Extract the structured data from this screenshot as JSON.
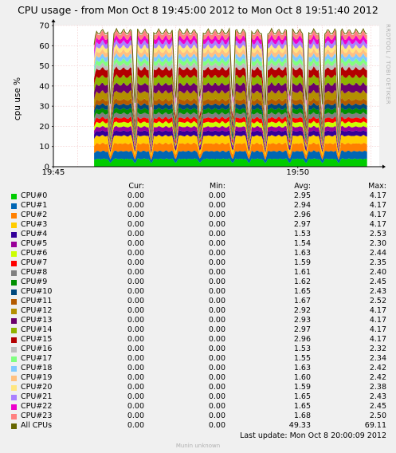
{
  "title": "CPU usage - from Mon Oct  8 19:45:00 2012 to Mon Oct  8 19:51:40 2012",
  "side_credit": "RRDTOOL / TOBI OETIKER",
  "footer": "Munin unknown",
  "last_update": "Last update:  Mon Oct  8 20:00:09 2012",
  "legend_headers": {
    "cur": "Cur:",
    "min": "Min:",
    "avg": "Avg:",
    "max": "Max:"
  },
  "legend": [
    {
      "name": "CPU#0",
      "color": "#00cc00",
      "cur": "0.00",
      "min": "0.00",
      "avg": "2.95",
      "max": "4.17"
    },
    {
      "name": "CPU#1",
      "color": "#0066b3",
      "cur": "0.00",
      "min": "0.00",
      "avg": "2.94",
      "max": "4.17"
    },
    {
      "name": "CPU#2",
      "color": "#ff8000",
      "cur": "0.00",
      "min": "0.00",
      "avg": "2.96",
      "max": "4.17"
    },
    {
      "name": "CPU#3",
      "color": "#ffcc00",
      "cur": "0.00",
      "min": "0.00",
      "avg": "2.97",
      "max": "4.17"
    },
    {
      "name": "CPU#4",
      "color": "#330099",
      "cur": "0.00",
      "min": "0.00",
      "avg": "1.53",
      "max": "2.53"
    },
    {
      "name": "CPU#5",
      "color": "#990099",
      "cur": "0.00",
      "min": "0.00",
      "avg": "1.54",
      "max": "2.30"
    },
    {
      "name": "CPU#6",
      "color": "#ccff00",
      "cur": "0.00",
      "min": "0.00",
      "avg": "1.63",
      "max": "2.44"
    },
    {
      "name": "CPU#7",
      "color": "#ff0000",
      "cur": "0.00",
      "min": "0.00",
      "avg": "1.59",
      "max": "2.35"
    },
    {
      "name": "CPU#8",
      "color": "#808080",
      "cur": "0.00",
      "min": "0.00",
      "avg": "1.61",
      "max": "2.40"
    },
    {
      "name": "CPU#9",
      "color": "#008f00",
      "cur": "0.00",
      "min": "0.00",
      "avg": "1.62",
      "max": "2.45"
    },
    {
      "name": "CPU#10",
      "color": "#00487d",
      "cur": "0.00",
      "min": "0.00",
      "avg": "1.65",
      "max": "2.43"
    },
    {
      "name": "CPU#11",
      "color": "#b35a00",
      "cur": "0.00",
      "min": "0.00",
      "avg": "1.67",
      "max": "2.52"
    },
    {
      "name": "CPU#12",
      "color": "#b38f00",
      "cur": "0.00",
      "min": "0.00",
      "avg": "2.92",
      "max": "4.17"
    },
    {
      "name": "CPU#13",
      "color": "#6b006b",
      "cur": "0.00",
      "min": "0.00",
      "avg": "2.93",
      "max": "4.17"
    },
    {
      "name": "CPU#14",
      "color": "#8fb300",
      "cur": "0.00",
      "min": "0.00",
      "avg": "2.97",
      "max": "4.17"
    },
    {
      "name": "CPU#15",
      "color": "#b30000",
      "cur": "0.00",
      "min": "0.00",
      "avg": "2.96",
      "max": "4.17"
    },
    {
      "name": "CPU#16",
      "color": "#bebebe",
      "cur": "0.00",
      "min": "0.00",
      "avg": "1.53",
      "max": "2.32"
    },
    {
      "name": "CPU#17",
      "color": "#80ff80",
      "cur": "0.00",
      "min": "0.00",
      "avg": "1.55",
      "max": "2.34"
    },
    {
      "name": "CPU#18",
      "color": "#80c9ff",
      "cur": "0.00",
      "min": "0.00",
      "avg": "1.63",
      "max": "2.42"
    },
    {
      "name": "CPU#19",
      "color": "#ffc080",
      "cur": "0.00",
      "min": "0.00",
      "avg": "1.60",
      "max": "2.42"
    },
    {
      "name": "CPU#20",
      "color": "#ffe680",
      "cur": "0.00",
      "min": "0.00",
      "avg": "1.59",
      "max": "2.38"
    },
    {
      "name": "CPU#21",
      "color": "#aa80ff",
      "cur": "0.00",
      "min": "0.00",
      "avg": "1.65",
      "max": "2.43"
    },
    {
      "name": "CPU#22",
      "color": "#ee00cc",
      "cur": "0.00",
      "min": "0.00",
      "avg": "1.65",
      "max": "2.45"
    },
    {
      "name": "CPU#23",
      "color": "#ff8080",
      "cur": "0.00",
      "min": "0.00",
      "avg": "1.68",
      "max": "2.50"
    },
    {
      "name": "All CPUs",
      "color": "#666600",
      "cur": "0.00",
      "min": "0.00",
      "avg": "49.33",
      "max": "69.11"
    }
  ],
  "chart_data": {
    "type": "area",
    "stacked": true,
    "title": "CPU usage - from Mon Oct  8 19:45:00 2012 to Mon Oct  8 19:51:40 2012",
    "xlabel": "",
    "ylabel": "cpu use %",
    "xlim": [
      "19:45:00",
      "19:51:40"
    ],
    "ylim": [
      0,
      70
    ],
    "xticks": [
      "19:45",
      "19:50"
    ],
    "yticks": [
      0,
      10,
      20,
      30,
      40,
      50,
      60,
      70
    ],
    "grid": true,
    "data_window": [
      "19:45:50",
      "19:51:25"
    ],
    "series": [
      {
        "name": "CPU#0",
        "color": "#00cc00",
        "avg": 2.95,
        "max": 4.17
      },
      {
        "name": "CPU#1",
        "color": "#0066b3",
        "avg": 2.94,
        "max": 4.17
      },
      {
        "name": "CPU#2",
        "color": "#ff8000",
        "avg": 2.96,
        "max": 4.17
      },
      {
        "name": "CPU#3",
        "color": "#ffcc00",
        "avg": 2.97,
        "max": 4.17
      },
      {
        "name": "CPU#4",
        "color": "#330099",
        "avg": 1.53,
        "max": 2.53
      },
      {
        "name": "CPU#5",
        "color": "#990099",
        "avg": 1.54,
        "max": 2.3
      },
      {
        "name": "CPU#6",
        "color": "#ccff00",
        "avg": 1.63,
        "max": 2.44
      },
      {
        "name": "CPU#7",
        "color": "#ff0000",
        "avg": 1.59,
        "max": 2.35
      },
      {
        "name": "CPU#8",
        "color": "#808080",
        "avg": 1.61,
        "max": 2.4
      },
      {
        "name": "CPU#9",
        "color": "#008f00",
        "avg": 1.62,
        "max": 2.45
      },
      {
        "name": "CPU#10",
        "color": "#00487d",
        "avg": 1.65,
        "max": 2.43
      },
      {
        "name": "CPU#11",
        "color": "#b35a00",
        "avg": 1.67,
        "max": 2.52
      },
      {
        "name": "CPU#12",
        "color": "#b38f00",
        "avg": 2.92,
        "max": 4.17
      },
      {
        "name": "CPU#13",
        "color": "#6b006b",
        "avg": 2.93,
        "max": 4.17
      },
      {
        "name": "CPU#14",
        "color": "#8fb300",
        "avg": 2.97,
        "max": 4.17
      },
      {
        "name": "CPU#15",
        "color": "#b30000",
        "avg": 2.96,
        "max": 4.17
      },
      {
        "name": "CPU#16",
        "color": "#bebebe",
        "avg": 1.53,
        "max": 2.32
      },
      {
        "name": "CPU#17",
        "color": "#80ff80",
        "avg": 1.55,
        "max": 2.34
      },
      {
        "name": "CPU#18",
        "color": "#80c9ff",
        "avg": 1.63,
        "max": 2.42
      },
      {
        "name": "CPU#19",
        "color": "#ffc080",
        "avg": 1.6,
        "max": 2.42
      },
      {
        "name": "CPU#20",
        "color": "#ffe680",
        "avg": 1.59,
        "max": 2.38
      },
      {
        "name": "CPU#21",
        "color": "#aa80ff",
        "avg": 1.65,
        "max": 2.43
      },
      {
        "name": "CPU#22",
        "color": "#ee00cc",
        "avg": 1.65,
        "max": 2.45
      },
      {
        "name": "CPU#23",
        "color": "#ff8080",
        "avg": 1.68,
        "max": 2.5
      }
    ],
    "total": {
      "name": "All CPUs",
      "color": "#666600",
      "avg": 49.33,
      "max": 69.11
    },
    "dips_at": [
      "19:46:10",
      "19:46:40",
      "19:47:00",
      "19:47:30",
      "19:48:00",
      "19:48:40",
      "19:49:00",
      "19:49:20",
      "19:49:50",
      "19:50:10",
      "19:50:30",
      "19:50:50"
    ]
  }
}
